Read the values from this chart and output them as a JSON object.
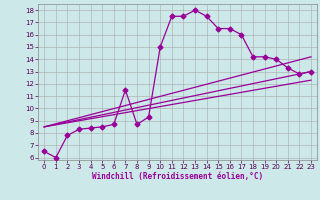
{
  "xlabel": "Windchill (Refroidissement éolien,°C)",
  "background_color": "#cce8e8",
  "line_color": "#990099",
  "grid_color": "#aaaaaa",
  "xlim": [
    -0.5,
    23.5
  ],
  "ylim": [
    5.8,
    18.5
  ],
  "xticks": [
    0,
    1,
    2,
    3,
    4,
    5,
    6,
    7,
    8,
    9,
    10,
    11,
    12,
    13,
    14,
    15,
    16,
    17,
    18,
    19,
    20,
    21,
    22,
    23
  ],
  "yticks": [
    6,
    7,
    8,
    9,
    10,
    11,
    12,
    13,
    14,
    15,
    16,
    17,
    18
  ],
  "series1_x": [
    0,
    1,
    2,
    3,
    4,
    5,
    6,
    7,
    8,
    9,
    10,
    11,
    12,
    13,
    14,
    15,
    16,
    17,
    18,
    19,
    20,
    21,
    22,
    23
  ],
  "series1_y": [
    6.5,
    6.0,
    7.8,
    8.3,
    8.4,
    8.5,
    8.7,
    11.5,
    8.7,
    9.3,
    15.0,
    17.5,
    17.5,
    18.0,
    17.5,
    16.5,
    16.5,
    16.0,
    14.2,
    14.2,
    14.0,
    13.3,
    12.8,
    13.0
  ],
  "series2_x": [
    0,
    23
  ],
  "series2_y": [
    8.5,
    13.0
  ],
  "series3_x": [
    0,
    23
  ],
  "series3_y": [
    8.5,
    14.2
  ],
  "series4_x": [
    0,
    23
  ],
  "series4_y": [
    8.5,
    12.3
  ],
  "marker": "D",
  "markersize": 2.5,
  "linewidth": 0.9,
  "xlabel_fontsize": 5.5,
  "tick_fontsize": 5
}
